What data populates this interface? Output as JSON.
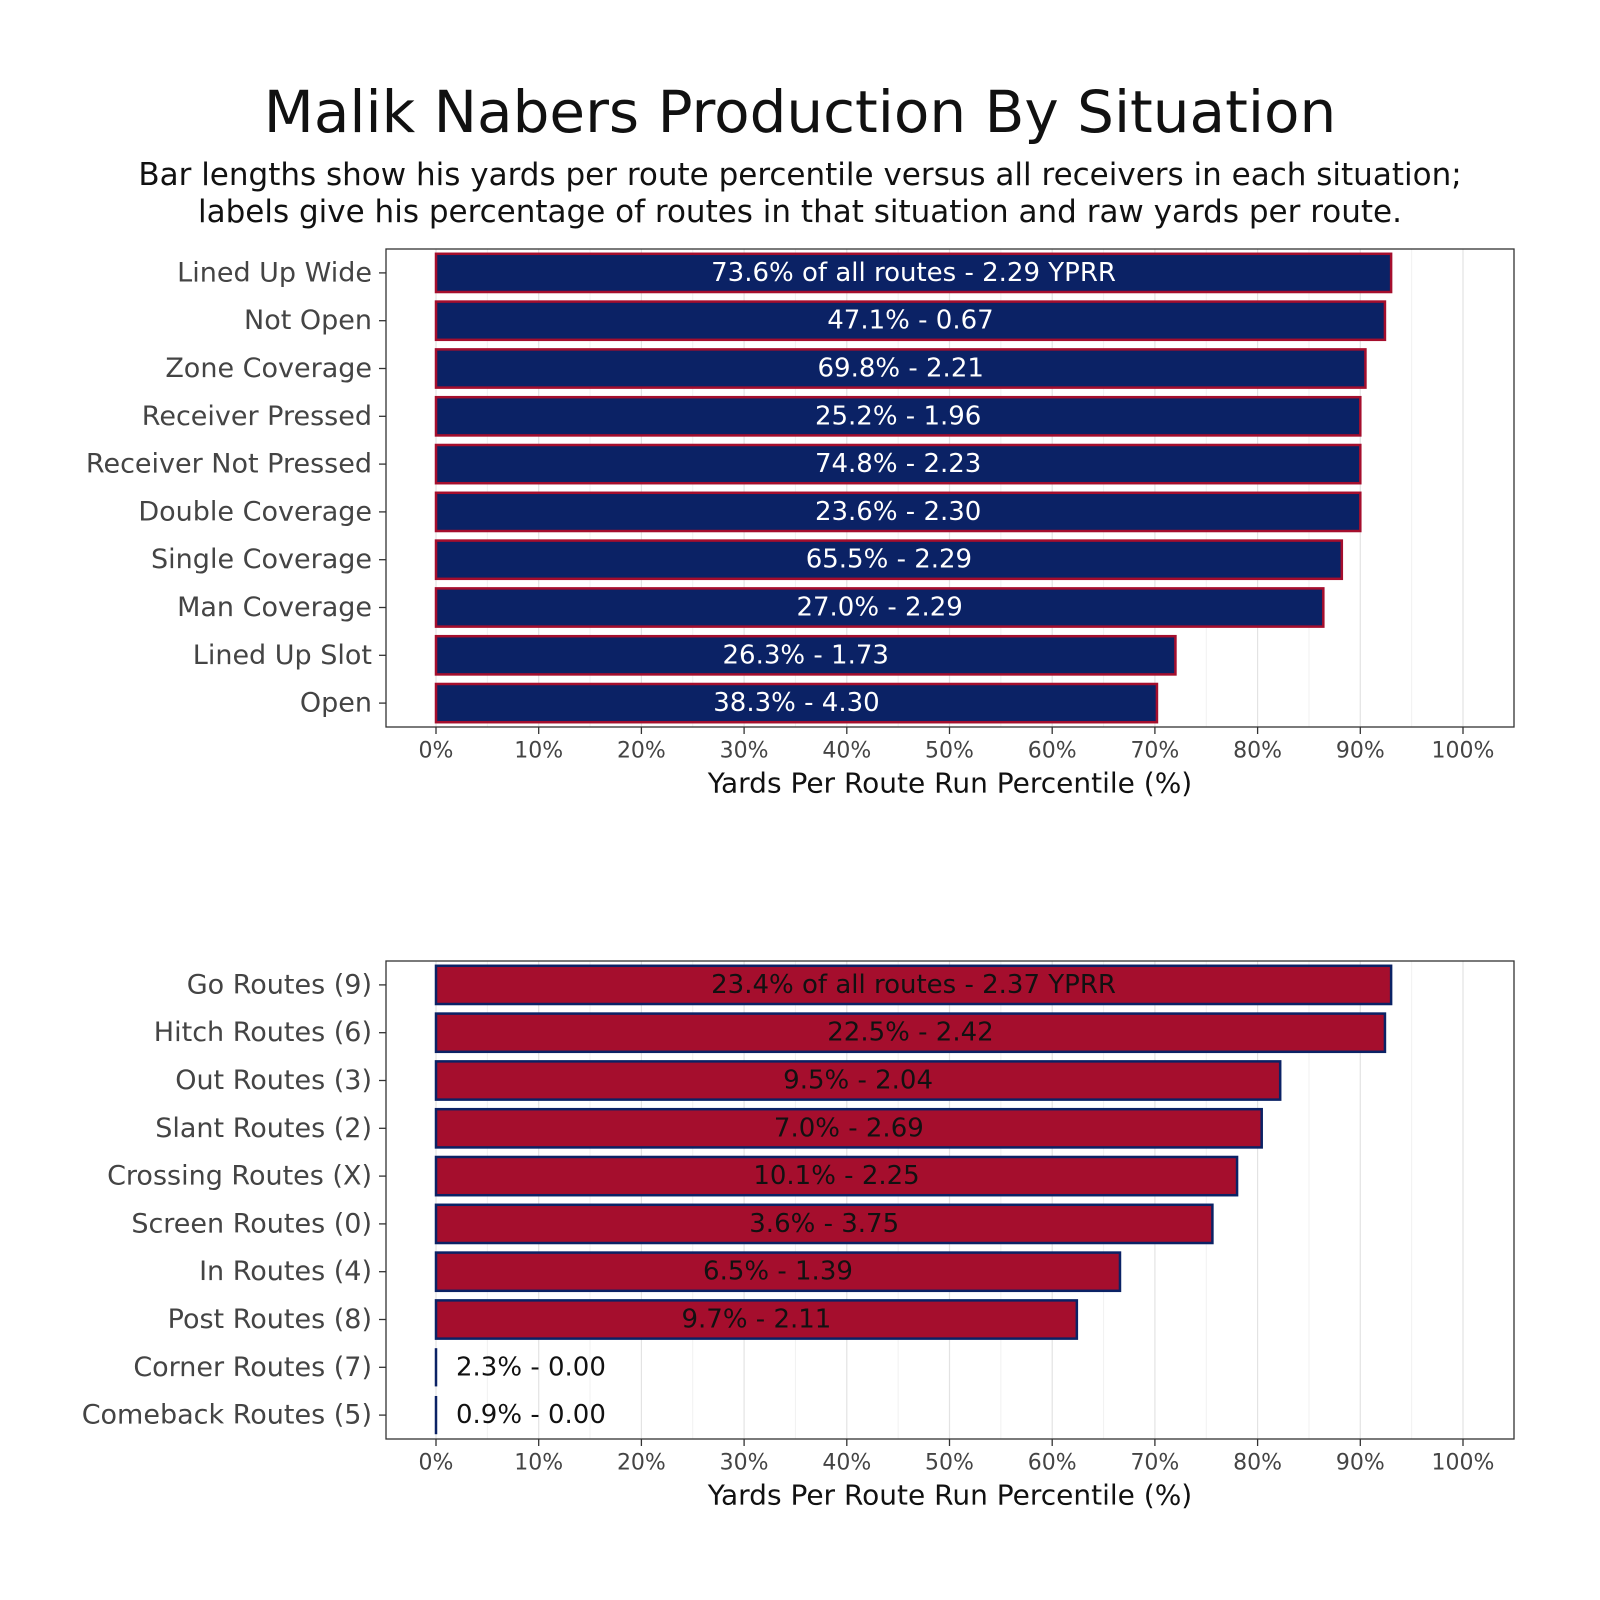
{
  "title": "Malik Nabers Production By Situation",
  "subtitle_lines": [
    "Bar lengths show his yards per route percentile versus all receivers in each situation;",
    "labels give his percentage of routes in that situation and raw yards per route."
  ],
  "colors": {
    "navy": "#0b2265",
    "red": "#a50e2d"
  },
  "chart_data": [
    {
      "type": "bar",
      "orientation": "horizontal",
      "xlabel": "Yards Per Route Run Percentile (%)",
      "xlim": [
        0,
        100
      ],
      "xticks": [
        "0%",
        "10%",
        "20%",
        "30%",
        "40%",
        "50%",
        "60%",
        "70%",
        "80%",
        "90%",
        "100%"
      ],
      "categories": [
        "Lined Up Wide",
        "Not Open",
        "Zone Coverage",
        "Receiver Pressed",
        "Receiver Not Pressed",
        "Double Coverage",
        "Single Coverage",
        "Man Coverage",
        "Lined Up Slot",
        "Open"
      ],
      "values": [
        93,
        92.4,
        90.5,
        90,
        90,
        90,
        88.2,
        86.4,
        72,
        70.2
      ],
      "labels": [
        "73.6% of all routes - 2.29 YPRR",
        "47.1% - 0.67",
        "69.8% - 2.21",
        "25.2% - 1.96",
        "74.8% - 2.23",
        "23.6% - 2.30",
        "65.5% - 2.29",
        "27.0% - 2.29",
        "26.3% - 1.73",
        "38.3% - 4.30"
      ],
      "fill": "#0b2265",
      "outline": "#a50e2d",
      "label_color": "#ffffff",
      "grid": true
    },
    {
      "type": "bar",
      "orientation": "horizontal",
      "xlabel": "Yards Per Route Run Percentile (%)",
      "xlim": [
        0,
        100
      ],
      "xticks": [
        "0%",
        "10%",
        "20%",
        "30%",
        "40%",
        "50%",
        "60%",
        "70%",
        "80%",
        "90%",
        "100%"
      ],
      "categories": [
        "Go Routes (9)",
        "Hitch Routes (6)",
        "Out Routes (3)",
        "Slant Routes (2)",
        "Crossing Routes (X)",
        "Screen Routes (0)",
        "In Routes (4)",
        "Post Routes (8)",
        "Corner Routes (7)",
        "Comeback Routes (5)"
      ],
      "values": [
        93,
        92.4,
        82.2,
        80.4,
        78,
        75.6,
        66.6,
        62.4,
        0,
        0
      ],
      "labels": [
        "23.4% of all routes - 2.37 YPRR",
        "22.5% - 2.42",
        "9.5% - 2.04",
        "7.0% - 2.69",
        "10.1% - 2.25",
        "3.6% - 3.75",
        "6.5% - 1.39",
        "9.7% - 2.11",
        "2.3% - 0.00",
        "0.9% - 0.00"
      ],
      "fill": "#a50e2d",
      "outline": "#0b2265",
      "label_color": "#111111",
      "grid": true
    }
  ]
}
